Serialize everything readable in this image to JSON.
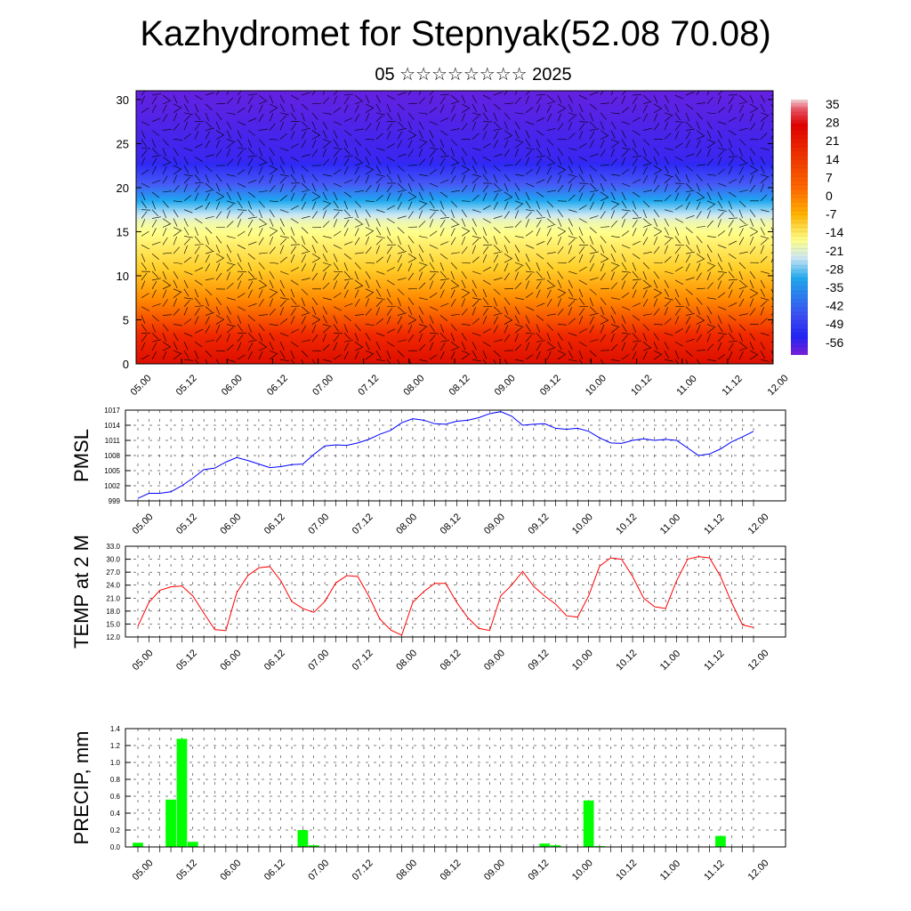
{
  "title": "Kazhydromet for Stepnyak(52.08 70.08)",
  "subtitle": "05 ☆☆☆☆☆☆☆☆ 2025",
  "time_ticks": [
    "05.00",
    "05.12",
    "06.00",
    "06.12",
    "07.00",
    "07.12",
    "08.00",
    "08.12",
    "09.00",
    "09.12",
    "10.00",
    "10.12",
    "11.00",
    "11.12",
    "12.00"
  ],
  "colors": {
    "pmsl_line": "#0000ff",
    "temp_line": "#ff0000",
    "precip_bar": "#00ff00",
    "wind_barbs": "#000000"
  },
  "chart_data": [
    {
      "type": "heatmap",
      "name": "temperature-wind-cross-section",
      "ylim": [
        0,
        31
      ],
      "yticks": [
        0,
        5,
        10,
        15,
        20,
        25,
        30
      ],
      "colorbar_labels": [
        "35",
        "28",
        "21",
        "14",
        "7",
        "0",
        "-7",
        "-14",
        "-21",
        "-28",
        "-35",
        "-42",
        "-49",
        "-56"
      ],
      "colorbar_range": [
        -60,
        38
      ],
      "wind_barbs": true,
      "x": [
        "05.00",
        "05.12",
        "06.00",
        "06.12",
        "07.00",
        "07.12",
        "08.00",
        "08.12",
        "09.00",
        "09.12",
        "10.00",
        "10.12",
        "11.00",
        "11.12",
        "12.00"
      ]
    },
    {
      "type": "line",
      "ylabel": "PMSL",
      "ylim": [
        999,
        1017
      ],
      "yticks": [
        "999",
        "1002",
        "1005",
        "1008",
        "1011",
        "1014",
        "1017"
      ],
      "grid": true,
      "x_start": "05.00",
      "x_step_hours": 3,
      "values": [
        999.5,
        1000.5,
        1000.5,
        1000.8,
        1002,
        1003.5,
        1005.2,
        1005.5,
        1006.7,
        1007.6,
        1007.0,
        1006.3,
        1005.6,
        1005.8,
        1006.2,
        1006.3,
        1008.2,
        1009.9,
        1010.1,
        1010.0,
        1010.5,
        1011.2,
        1012.2,
        1013.0,
        1014.5,
        1015.3,
        1015.0,
        1014.3,
        1014.2,
        1014.8,
        1015.0,
        1015.5,
        1016.3,
        1016.7,
        1015.8,
        1014.0,
        1014.2,
        1014.3,
        1013.4,
        1013.2,
        1013.4,
        1012.8,
        1011.5,
        1010.5,
        1010.4,
        1011.0,
        1011.3,
        1011.0,
        1011.2,
        1011.0,
        1009.5,
        1008.0,
        1008.3,
        1009.3,
        1010.7,
        1011.7,
        1012.8
      ]
    },
    {
      "type": "line",
      "ylabel": "TEMP at 2 M",
      "ylim": [
        12,
        33
      ],
      "yticks": [
        "12.0",
        "15.0",
        "18.0",
        "21.0",
        "24.0",
        "27.0",
        "30.0",
        "33.0"
      ],
      "grid": true,
      "x_start": "05.00",
      "x_step_hours": 3,
      "values": [
        14.5,
        20.0,
        22.8,
        23.6,
        23.8,
        21.5,
        17.5,
        13.7,
        13.5,
        22.3,
        26.2,
        28.0,
        28.3,
        25.0,
        20.2,
        18.6,
        17.7,
        20.2,
        24.5,
        26.2,
        26.0,
        21.5,
        16.2,
        13.6,
        12.4,
        20.0,
        22.5,
        24.4,
        24.4,
        20.0,
        16.5,
        14.0,
        13.5,
        21.5,
        24.0,
        27.2,
        23.7,
        21.5,
        19.6,
        16.9,
        16.6,
        21.5,
        28.4,
        30.3,
        30.0,
        26.0,
        21.0,
        19.0,
        18.6,
        25.0,
        30.0,
        30.6,
        30.3,
        26.0,
        20.0,
        14.8,
        14.2
      ]
    },
    {
      "type": "bar",
      "ylabel": "PRECIP, mm",
      "ylim": [
        0,
        1.4
      ],
      "yticks": [
        "0.0",
        "0.2",
        "0.4",
        "0.6",
        "0.8",
        "1.0",
        "1.2",
        "1.4"
      ],
      "grid": true,
      "x_start": "05.00",
      "x_step_hours": 3,
      "values": [
        0.05,
        0,
        0,
        0.56,
        1.28,
        0.06,
        0,
        0,
        0,
        0,
        0,
        0,
        0,
        0,
        0,
        0.2,
        0.02,
        0,
        0,
        0,
        0,
        0,
        0,
        0,
        0,
        0,
        0,
        0,
        0,
        0,
        0,
        0,
        0,
        0,
        0,
        0,
        0,
        0.04,
        0.02,
        0,
        0,
        0.55,
        0.01,
        0,
        0,
        0,
        0,
        0,
        0,
        0,
        0,
        0,
        0,
        0.13,
        0,
        0,
        0
      ]
    }
  ]
}
